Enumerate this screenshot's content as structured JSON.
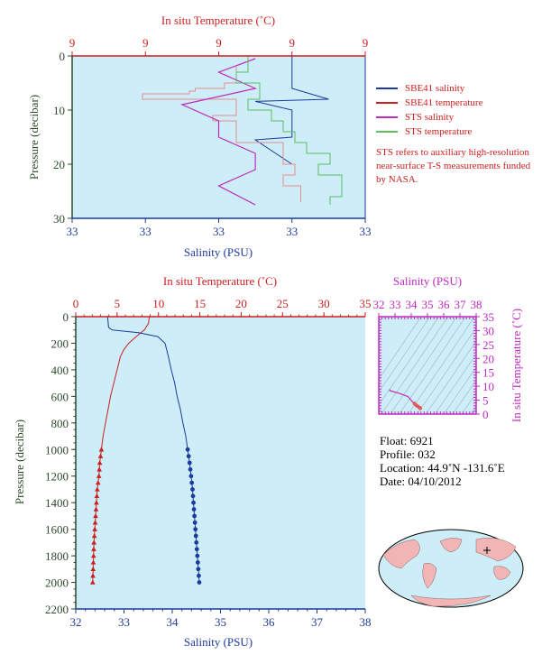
{
  "top": {
    "top_axis_label": "In situ Temperature (˚C)",
    "bottom_axis_label": "Salinity (PSU)",
    "left_axis_label": "Pressure (decibar)",
    "top_ticks": [
      "9",
      "9",
      "9",
      "9",
      "9"
    ],
    "bottom_ticks": [
      "33",
      "33",
      "33",
      "33",
      "33"
    ],
    "left_ticks": [
      "0",
      "10",
      "20",
      "30"
    ],
    "legend": [
      {
        "label": "SBE41 salinity",
        "color": "#1c3a9c"
      },
      {
        "label": "SBE41 temperature",
        "color": "#cc1f1f"
      },
      {
        "label": "STS salinity",
        "color": "#c02ac0"
      },
      {
        "label": "STS temperature",
        "color": "#5cc05c"
      }
    ],
    "note": "STS refers to auxiliary high-resolution near-surface T-S measurements funded by NASA."
  },
  "main": {
    "top_axis_label": "In situ Temperature (˚C)",
    "bottom_axis_label": "Salinity (PSU)",
    "left_axis_label": "Pressure (decibar)",
    "top_ticks": [
      "0",
      "5",
      "10",
      "15",
      "20",
      "25",
      "30",
      "35"
    ],
    "bottom_ticks": [
      "32",
      "33",
      "34",
      "35",
      "36",
      "37",
      "38"
    ],
    "left_ticks": [
      "0",
      "200",
      "400",
      "600",
      "800",
      "1000",
      "1200",
      "1400",
      "1600",
      "1800",
      "2000",
      "2200"
    ]
  },
  "ts": {
    "top_axis_label": "Salinity (PSU)",
    "right_axis_label": "In situ Temperature (˚C)",
    "top_ticks": [
      "32",
      "33",
      "34",
      "35",
      "36",
      "37",
      "38"
    ],
    "right_ticks": [
      "0",
      "5",
      "10",
      "15",
      "20",
      "25",
      "30",
      "35"
    ]
  },
  "info": {
    "float": "Float:  6921",
    "profile": "Profile:  032",
    "location": "Location:  44.9˚N  -131.6˚E",
    "date": "Date:  04/10/2012"
  },
  "colors": {
    "plot_bg": "#cdedf8",
    "temperature": "#cc1f1f",
    "salinity": "#1c3a9c",
    "sts_salinity": "#c02ac0",
    "sts_temperature": "#5cc05c"
  },
  "chart_data": [
    {
      "type": "line",
      "title": "",
      "xlabel": "Salinity (PSU)",
      "x2label": "In situ Temperature (˚C)",
      "ylabel": "Pressure (decibar)",
      "ylim": [
        0,
        30
      ],
      "series": [
        {
          "name": "SBE41 salinity",
          "axis": "salinity",
          "points": [
            [
              33.06,
              0
            ],
            [
              33.06,
              6
            ],
            [
              33.07,
              8
            ],
            [
              33.05,
              8.4
            ],
            [
              33.06,
              10
            ],
            [
              33.06,
              15
            ],
            [
              33.05,
              15.5
            ],
            [
              33.06,
              20
            ]
          ]
        },
        {
          "name": "SBE41 temperature",
          "axis": "temperature",
          "points": [
            [
              9.4,
              2
            ],
            [
              9.4,
              5
            ],
            [
              9.3,
              6
            ],
            [
              9.05,
              6.5
            ],
            [
              9.0,
              7
            ],
            [
              8.6,
              8
            ],
            [
              9.4,
              8.5
            ],
            [
              9.4,
              11
            ],
            [
              9.2,
              12
            ],
            [
              9.4,
              13
            ],
            [
              9.4,
              16
            ],
            [
              9.8,
              17
            ],
            [
              9.8,
              20
            ],
            [
              9.9,
              22
            ],
            [
              9.8,
              24
            ],
            [
              9.95,
              25
            ],
            [
              9.95,
              27
            ]
          ]
        },
        {
          "name": "STS salinity",
          "axis": "salinity",
          "points": [
            [
              33.05,
              0.5
            ],
            [
              33.04,
              3
            ],
            [
              33.05,
              6
            ],
            [
              33.03,
              9
            ],
            [
              33.04,
              12
            ],
            [
              33.04,
              15
            ],
            [
              33.05,
              18
            ],
            [
              33.05,
              21
            ],
            [
              33.04,
              24
            ],
            [
              33.05,
              27.5
            ]
          ]
        },
        {
          "name": "STS temperature",
          "axis": "temperature",
          "points": [
            [
              9.5,
              0
            ],
            [
              9.5,
              3
            ],
            [
              9.4,
              5
            ],
            [
              9.6,
              8
            ],
            [
              9.5,
              10
            ],
            [
              9.7,
              12
            ],
            [
              9.8,
              14
            ],
            [
              9.9,
              16
            ],
            [
              10.0,
              18
            ],
            [
              10.2,
              20
            ],
            [
              10.1,
              22
            ],
            [
              10.3,
              24
            ],
            [
              10.3,
              26
            ],
            [
              10.2,
              27.5
            ]
          ]
        }
      ]
    },
    {
      "type": "line",
      "title": "",
      "xlabel": "Salinity (PSU)",
      "x2label": "In situ Temperature (˚C)",
      "ylabel": "Pressure (decibar)",
      "xlim": [
        32,
        38
      ],
      "x2lim": [
        0,
        35
      ],
      "ylim": [
        0,
        2200
      ],
      "series": [
        {
          "name": "",
          "axis": "temperature",
          "points": [
            [
              8.9,
              0
            ],
            [
              8.8,
              50
            ],
            [
              8.3,
              100
            ],
            [
              7.3,
              150
            ],
            [
              6.4,
              200
            ],
            [
              5.8,
              250
            ],
            [
              5.4,
              300
            ],
            [
              5.0,
              400
            ],
            [
              4.6,
              500
            ],
            [
              4.2,
              600
            ],
            [
              3.9,
              700
            ],
            [
              3.6,
              800
            ],
            [
              3.3,
              900
            ],
            [
              3.1,
              1000
            ],
            [
              2.9,
              1100
            ],
            [
              2.8,
              1200
            ],
            [
              2.6,
              1300
            ],
            [
              2.5,
              1400
            ],
            [
              2.4,
              1500
            ],
            [
              2.3,
              1600
            ],
            [
              2.2,
              1700
            ],
            [
              2.15,
              1800
            ],
            [
              2.1,
              1900
            ],
            [
              2.05,
              2000
            ]
          ]
        },
        {
          "name": "",
          "axis": "salinity",
          "points": [
            [
              32.66,
              0
            ],
            [
              32.68,
              80
            ],
            [
              32.75,
              100
            ],
            [
              33.3,
              120
            ],
            [
              33.7,
              150
            ],
            [
              33.85,
              200
            ],
            [
              33.92,
              300
            ],
            [
              33.98,
              400
            ],
            [
              34.05,
              500
            ],
            [
              34.1,
              600
            ],
            [
              34.17,
              700
            ],
            [
              34.22,
              800
            ],
            [
              34.28,
              900
            ],
            [
              34.32,
              1000
            ],
            [
              34.36,
              1100
            ],
            [
              34.39,
              1200
            ],
            [
              34.42,
              1300
            ],
            [
              34.44,
              1400
            ],
            [
              34.46,
              1500
            ],
            [
              34.48,
              1600
            ],
            [
              34.5,
              1700
            ],
            [
              34.52,
              1800
            ],
            [
              34.54,
              1900
            ],
            [
              34.56,
              2000
            ]
          ]
        }
      ]
    },
    {
      "type": "scatter",
      "title": "",
      "xlabel": "Salinity (PSU)",
      "ylabel": "In situ Temperature (˚C)",
      "xlim": [
        32,
        38
      ],
      "ylim": [
        0,
        35
      ],
      "series": [
        {
          "name": "",
          "points": [
            [
              32.66,
              8.9
            ],
            [
              32.7,
              8.4
            ],
            [
              33.3,
              7.4
            ],
            [
              33.8,
              6.3
            ],
            [
              33.95,
              5.3
            ],
            [
              34.05,
              4.6
            ],
            [
              34.2,
              3.8
            ],
            [
              34.3,
              3.2
            ],
            [
              34.4,
              2.8
            ],
            [
              34.5,
              2.4
            ],
            [
              34.56,
              2.1
            ]
          ]
        }
      ]
    }
  ]
}
